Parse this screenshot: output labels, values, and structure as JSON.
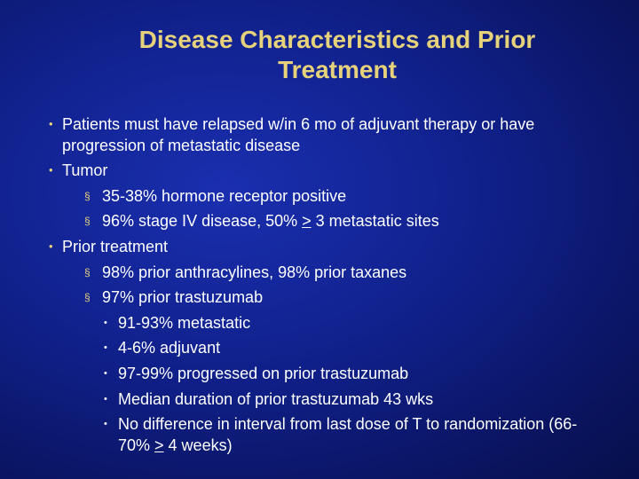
{
  "title": "Disease Characteristics and Prior Treatment",
  "bullets": [
    {
      "text": "Patients must have relapsed w/in 6 mo of adjuvant therapy or have progression of metastatic disease"
    },
    {
      "text": "Tumor",
      "sub": [
        {
          "text": "35-38% hormone receptor positive"
        },
        {
          "parts": [
            "96% stage IV disease, 50% ",
            ">",
            " 3 metastatic sites"
          ]
        }
      ]
    },
    {
      "text": "Prior treatment",
      "sub": [
        {
          "text": "98% prior anthracylines, 98% prior taxanes"
        },
        {
          "text": "97% prior trastuzumab",
          "sub": [
            {
              "text": "91-93% metastatic"
            },
            {
              "text": "4-6% adjuvant"
            },
            {
              "text": "97-99% progressed on prior trastuzumab"
            },
            {
              "text": "Median duration of prior trastuzumab 43 wks"
            },
            {
              "parts": [
                "No difference in interval from last dose of T to randomization (66-70% ",
                ">",
                " 4 weeks)"
              ]
            }
          ]
        }
      ]
    }
  ]
}
